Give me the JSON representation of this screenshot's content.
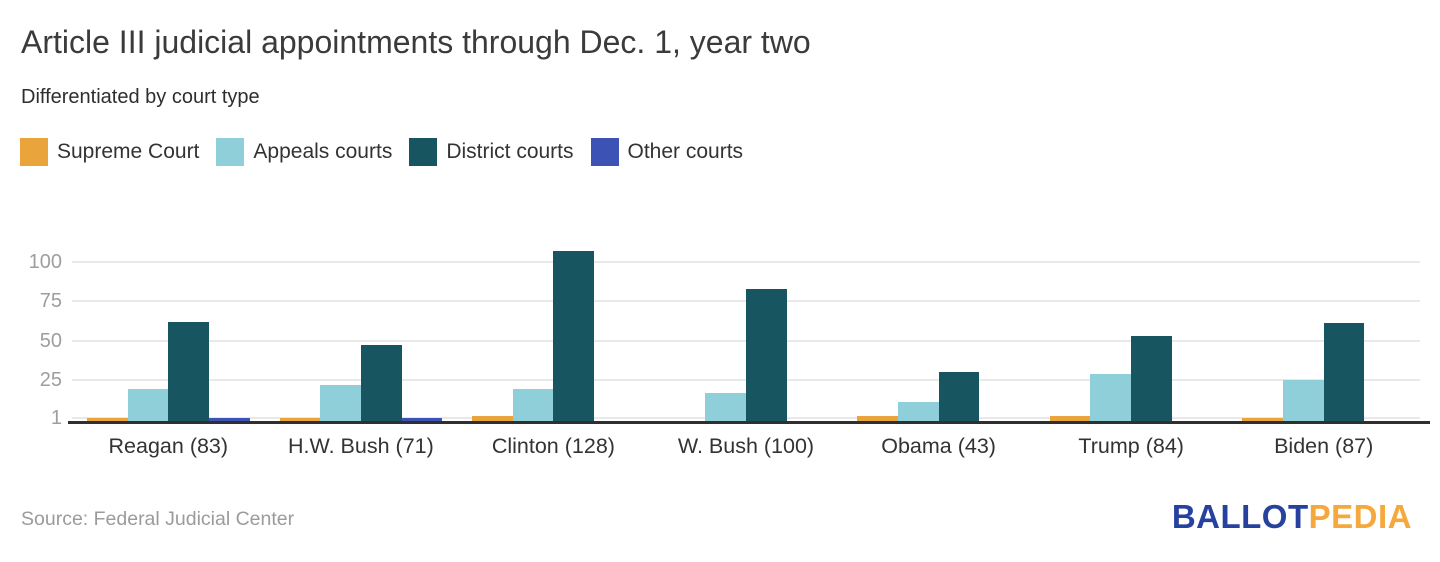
{
  "header": {
    "title": "Article III judicial appointments through Dec. 1, year two",
    "subtitle": "Differentiated by court type"
  },
  "legend": {
    "items": [
      {
        "label": "Supreme Court",
        "color": "#E9A43C"
      },
      {
        "label": "Appeals courts",
        "color": "#8FCFDA"
      },
      {
        "label": "District courts",
        "color": "#175561"
      },
      {
        "label": "Other courts",
        "color": "#3D52B5"
      }
    ]
  },
  "chart_data": {
    "type": "bar",
    "title": "Article III judicial appointments through Dec. 1, year two",
    "subtitle": "Differentiated by court type",
    "categories": [
      "Reagan (83)",
      "H.W. Bush (71)",
      "Clinton (128)",
      "W. Bush (100)",
      "Obama (43)",
      "Trump (84)",
      "Biden (87)"
    ],
    "category_totals": [
      83,
      71,
      128,
      100,
      43,
      84,
      87
    ],
    "series": [
      {
        "name": "Supreme Court",
        "color": "#E9A43C",
        "values": [
          1,
          1,
          2,
          0,
          2,
          2,
          1
        ]
      },
      {
        "name": "Appeals courts",
        "color": "#8FCFDA",
        "values": [
          19,
          22,
          19,
          17,
          11,
          29,
          25
        ]
      },
      {
        "name": "District courts",
        "color": "#175561",
        "values": [
          62,
          47,
          107,
          83,
          30,
          53,
          61
        ]
      },
      {
        "name": "Other courts",
        "color": "#3D52B5",
        "values": [
          1,
          1,
          0,
          0,
          0,
          0,
          0
        ]
      }
    ],
    "yticks": [
      1,
      25,
      50,
      75,
      100
    ],
    "ylim": [
      0,
      107
    ],
    "grid": "horizontal",
    "legend_position": "top-left"
  },
  "footer": {
    "source": "Source: Federal Judicial Center",
    "logo": {
      "part1": "BALLOT",
      "part2": "PEDIA"
    }
  },
  "colors": {
    "grid": "#E9E9E9",
    "axis": "#2F2F2F",
    "tick_label": "#9E9E9E",
    "category_label": "#333333",
    "title": "#3B3B3B",
    "source": "#9B9B9B",
    "logo_blue": "#27419E",
    "logo_gold": "#F5A83B"
  }
}
